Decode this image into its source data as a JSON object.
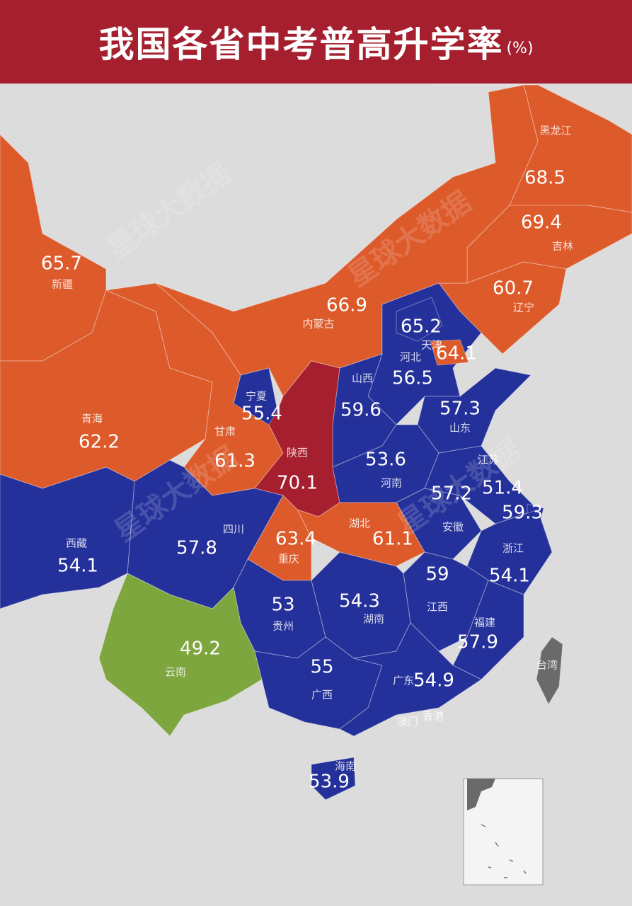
{
  "header": {
    "title": "我国各省中考普高升学率",
    "unit": "(%)"
  },
  "watermark": "星球大数据",
  "regions": [
    {
      "name": "黑龙江",
      "value": 68.5,
      "color": "#dd5a2b"
    },
    {
      "name": "吉林",
      "value": 69.4,
      "color": "#dd5a2b"
    },
    {
      "name": "辽宁",
      "value": 60.7,
      "color": "#dd5a2b"
    },
    {
      "name": "内蒙古",
      "value": 66.9,
      "color": "#dd5a2b"
    },
    {
      "name": "河北",
      "value": 56.5,
      "color": "#25319a"
    },
    {
      "value": 65.2,
      "color": "#25319a"
    },
    {
      "name": "天津",
      "value": 64.1,
      "color": "#dd5a2b"
    },
    {
      "name": "山西",
      "value": 59.6,
      "color": "#25319a"
    },
    {
      "name": "宁夏",
      "value": 55.4,
      "color": "#25319a"
    },
    {
      "name": "山东",
      "value": 57.3,
      "color": "#25319a"
    },
    {
      "name": "新疆",
      "value": 65.7,
      "color": "#dd5a2b"
    },
    {
      "name": "青海",
      "value": 62.2,
      "color": "#dd5a2b"
    },
    {
      "name": "甘肃",
      "value": 61.3,
      "color": "#dd5a2b"
    },
    {
      "name": "陕西",
      "value": 70.1,
      "color": "#a51f2e"
    },
    {
      "name": "河南",
      "value": 53.6,
      "color": "#25319a"
    },
    {
      "name": "江苏",
      "value": 51.4,
      "color": "#25319a"
    },
    {
      "value": 59.3,
      "color": "#25319a"
    },
    {
      "name": "安徽",
      "value": 57.2,
      "color": "#25319a"
    },
    {
      "name": "湖北",
      "value": 61.1,
      "color": "#dd5a2b"
    },
    {
      "name": "四川",
      "value": 57.8,
      "color": "#25319a"
    },
    {
      "name": "重庆",
      "value": 63.4,
      "color": "#dd5a2b"
    },
    {
      "name": "西藏",
      "value": 54.1,
      "color": "#25319a"
    },
    {
      "name": "浙江",
      "value": 54.1,
      "color": "#25319a"
    },
    {
      "name": "江西",
      "value": 59,
      "color": "#25319a"
    },
    {
      "name": "贵州",
      "value": 53,
      "color": "#25319a"
    },
    {
      "name": "湖南",
      "value": 54.3,
      "color": "#25319a"
    },
    {
      "name": "福建",
      "value": 57.9,
      "color": "#25319a"
    },
    {
      "name": "云南",
      "value": 49.2,
      "color": "#7ea63e"
    },
    {
      "name": "广西",
      "value": 55,
      "color": "#25319a"
    },
    {
      "name": "广东",
      "value": 54.9,
      "color": "#25319a"
    },
    {
      "name": "海南",
      "value": 53.9,
      "color": "#25319a"
    },
    {
      "name": "台湾",
      "color": "#6a6a6a"
    },
    {
      "name": "香港"
    },
    {
      "name": "澳门"
    }
  ]
}
